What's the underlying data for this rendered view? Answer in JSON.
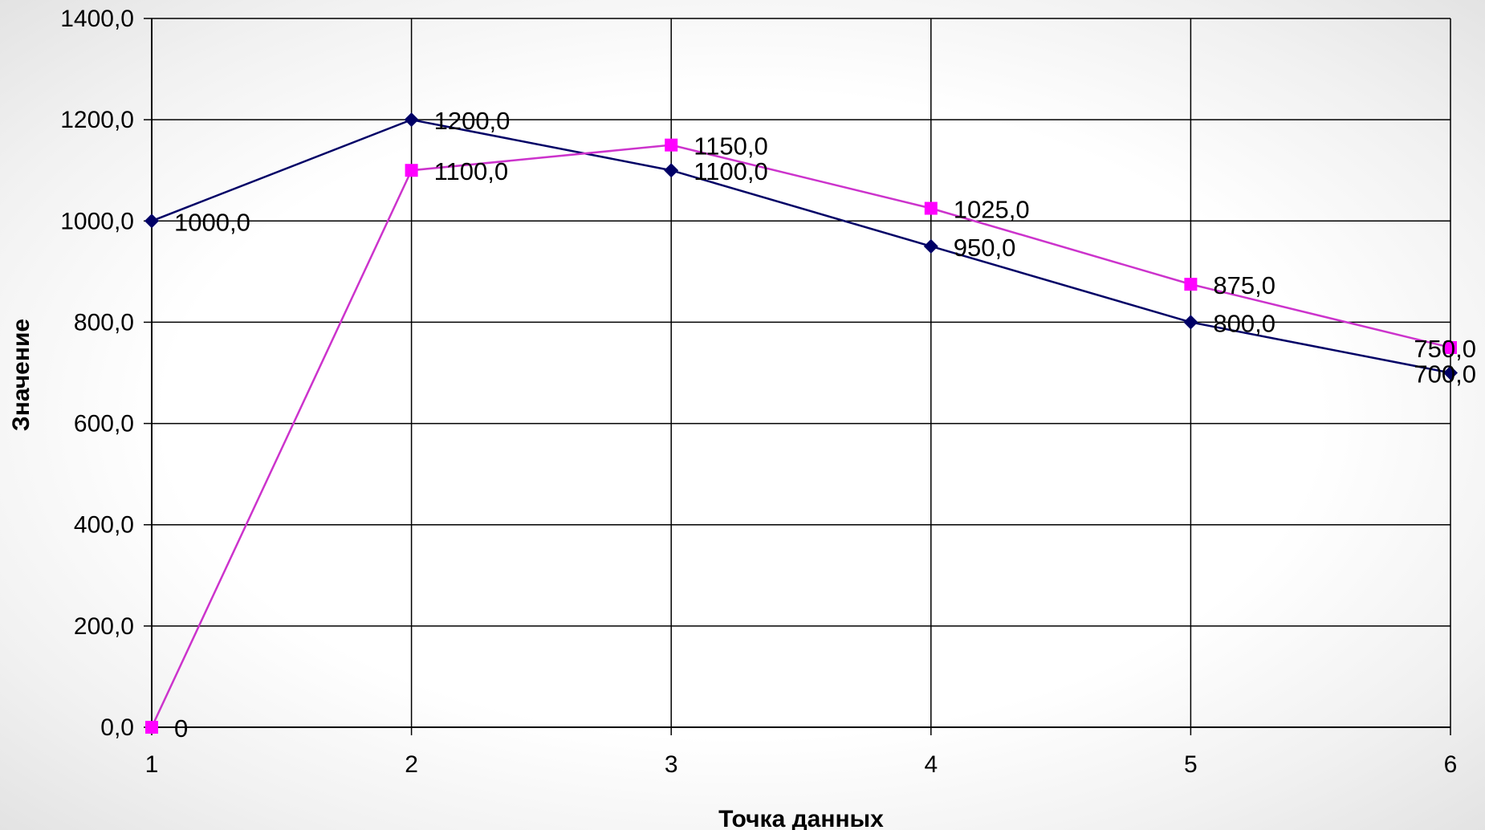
{
  "chart_data": {
    "type": "line",
    "xlabel": "Точка данных",
    "ylabel": "Значение",
    "x": [
      1,
      2,
      3,
      4,
      5,
      6
    ],
    "x_tick_labels": [
      "1",
      "2",
      "3",
      "4",
      "5",
      "6"
    ],
    "ylim": [
      0,
      1400
    ],
    "y_ticks": [
      0,
      200,
      400,
      600,
      800,
      1000,
      1200,
      1400
    ],
    "y_tick_labels": [
      "0,0",
      "200,0",
      "400,0",
      "600,0",
      "800,0",
      "1000,0",
      "1200,0",
      "1400,0"
    ],
    "grid": true,
    "legend": "none",
    "series": [
      {
        "marker": "diamond",
        "color": "#000066",
        "values": [
          1000,
          1200,
          1100,
          950,
          800,
          700
        ],
        "labels": [
          "1000,0",
          "1200,0",
          "1100,0",
          "950,0",
          "800,0",
          "700,0"
        ]
      },
      {
        "marker": "square",
        "color": "#FF00FF",
        "line_color": "#CC33CC",
        "values": [
          0,
          1100,
          1150,
          1025,
          875,
          750
        ],
        "labels": [
          "0",
          "1100,0",
          "1150,0",
          "1025,0",
          "875,0",
          "750,0"
        ]
      }
    ]
  }
}
